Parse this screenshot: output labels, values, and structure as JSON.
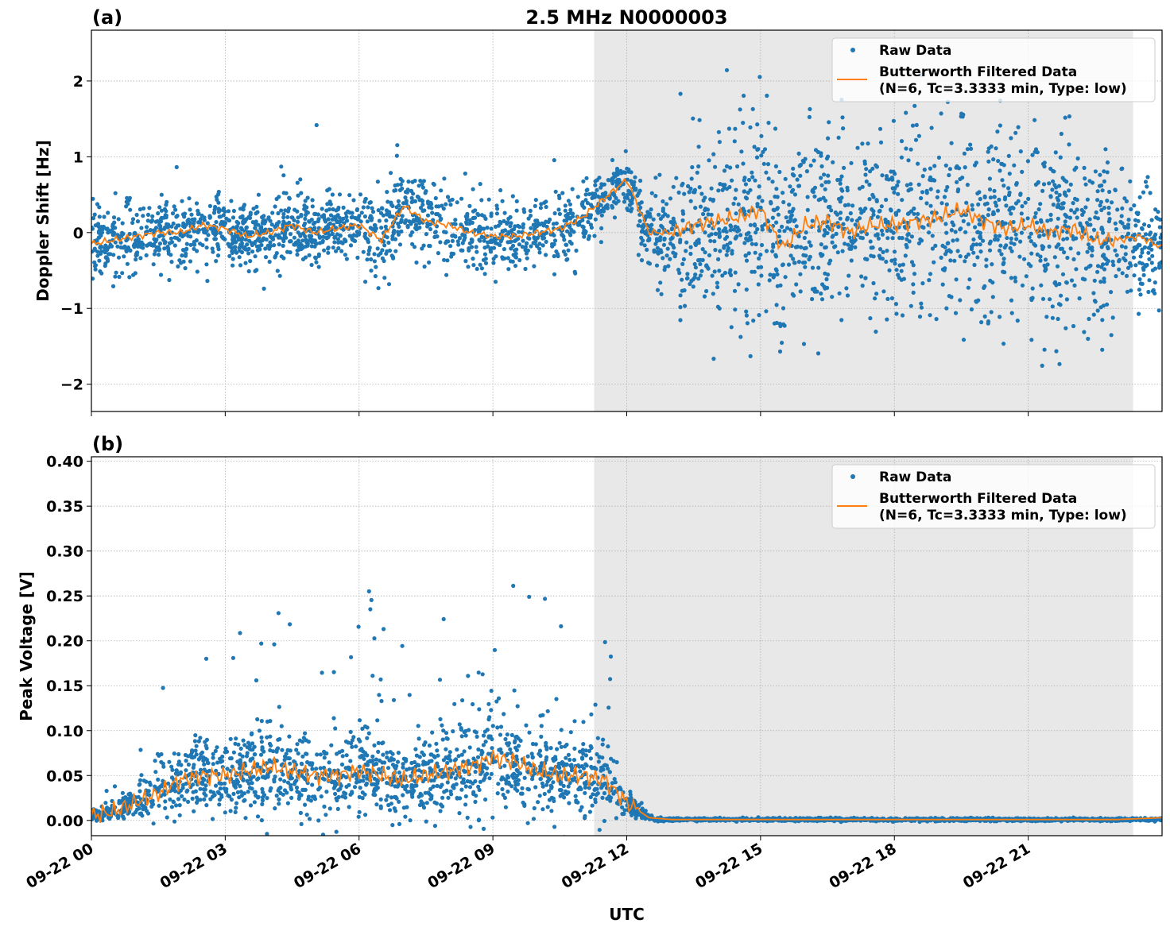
{
  "chart_data": [
    {
      "type": "scatter",
      "panel_label": "(a)",
      "title": "2.5 MHz N0000003",
      "xlabel": "",
      "ylabel": "Doppler Shift [Hz]",
      "x_unit": "hours UTC on 09-22",
      "xlim": [
        0,
        24
      ],
      "ylim": [
        -2.36,
        2.67
      ],
      "yticks": [
        -2,
        -1,
        0,
        1,
        2
      ],
      "ytick_labels": [
        "−2",
        "−1",
        "0",
        "1",
        "2"
      ],
      "xtick_labels": [
        "09-22 00",
        "09-22 03",
        "09-22 06",
        "09-22 09",
        "09-22 12",
        "09-22 15",
        "09-22 18",
        "09-22 21"
      ],
      "xticks": [
        0,
        3,
        6,
        9,
        12,
        15,
        18,
        21
      ],
      "grid": true,
      "shaded_interval": [
        11.27,
        23.35
      ],
      "shade_color": "#e8e8e8",
      "legend": {
        "placement": "top-right",
        "entries": [
          "Raw Data",
          "Butterworth Filtered Data",
          "(N=6, Tc=3.3333 min, Type: low)"
        ]
      },
      "series": [
        {
          "name": "Raw Data",
          "color": "#1f77b4",
          "marker": "dot"
        },
        {
          "name": "Butterworth Filtered Data",
          "color": "#ff7f0e",
          "t": [
            0,
            0.5,
            1,
            1.5,
            2,
            2.5,
            3,
            3.5,
            4,
            4.5,
            5,
            5.5,
            6,
            6.5,
            7,
            7.5,
            8,
            8.5,
            9,
            9.5,
            10,
            10.5,
            11,
            11.5,
            12,
            12.5,
            13,
            13.5,
            14,
            14.5,
            15,
            15.5,
            16,
            16.5,
            17,
            17.5,
            18,
            18.5,
            19,
            19.5,
            20,
            20.5,
            21,
            21.5,
            22,
            22.5,
            23,
            23.5,
            24
          ],
          "values": [
            -0.15,
            -0.1,
            -0.05,
            0,
            0,
            0.1,
            0.05,
            -0.05,
            0,
            0.1,
            0,
            0.05,
            0.1,
            -0.1,
            0.35,
            0.15,
            0.1,
            0,
            -0.05,
            -0.05,
            0,
            0.05,
            0.2,
            0.45,
            0.7,
            0,
            0,
            0.1,
            0.15,
            0.2,
            0.3,
            -0.2,
            0.1,
            0.15,
            0,
            0.1,
            0.1,
            0.15,
            0.2,
            0.3,
            0.15,
            0.05,
            0.1,
            0,
            0.05,
            -0.1,
            -0.1,
            -0.05,
            -0.2
          ]
        }
      ]
    },
    {
      "type": "scatter",
      "panel_label": "(b)",
      "xlabel": "UTC",
      "ylabel": "Peak Voltage [V]",
      "x_unit": "hours UTC on 09-22",
      "xlim": [
        0,
        24
      ],
      "ylim": [
        -0.017,
        0.405
      ],
      "yticks": [
        0,
        0.05,
        0.1,
        0.15,
        0.2,
        0.25,
        0.3,
        0.35,
        0.4
      ],
      "ytick_labels": [
        "0.00",
        "0.05",
        "0.10",
        "0.15",
        "0.20",
        "0.25",
        "0.30",
        "0.35",
        "0.40"
      ],
      "xtick_labels": [
        "09-22 00",
        "09-22 03",
        "09-22 06",
        "09-22 09",
        "09-22 12",
        "09-22 15",
        "09-22 18",
        "09-22 21"
      ],
      "xticks": [
        0,
        3,
        6,
        9,
        12,
        15,
        18,
        21
      ],
      "grid": true,
      "shaded_interval": [
        11.27,
        23.35
      ],
      "shade_color": "#e8e8e8",
      "legend": {
        "placement": "top-right",
        "entries": [
          "Raw Data",
          "Butterworth Filtered Data",
          "(N=6, Tc=3.3333 min, Type: low)"
        ]
      },
      "series": [
        {
          "name": "Raw Data",
          "color": "#1f77b4",
          "marker": "dot"
        },
        {
          "name": "Butterworth Filtered Data",
          "color": "#ff7f0e",
          "t": [
            0,
            0.5,
            1,
            1.5,
            2,
            2.5,
            3,
            3.5,
            4,
            4.5,
            5,
            5.5,
            6,
            6.5,
            7,
            7.5,
            8,
            8.5,
            9,
            9.5,
            10,
            10.5,
            11,
            11.5,
            12,
            12.5,
            13,
            13.5,
            14,
            14.5,
            15,
            15.5,
            16,
            16.5,
            17,
            17.5,
            18,
            18.5,
            19,
            19.5,
            20,
            20.5,
            21,
            21.5,
            22,
            22.5,
            23,
            23.5,
            24
          ],
          "values": [
            0.005,
            0.01,
            0.02,
            0.03,
            0.045,
            0.05,
            0.05,
            0.055,
            0.06,
            0.055,
            0.05,
            0.05,
            0.055,
            0.05,
            0.045,
            0.05,
            0.055,
            0.06,
            0.07,
            0.065,
            0.055,
            0.05,
            0.05,
            0.045,
            0.02,
            0.003,
            0.001,
            0.001,
            0.001,
            0.001,
            0.001,
            0.001,
            0.001,
            0.001,
            0.001,
            0.001,
            0.001,
            0.001,
            0.001,
            0.001,
            0.001,
            0.001,
            0.001,
            0.001,
            0.001,
            0.001,
            0.001,
            0.002,
            0.003
          ]
        }
      ]
    }
  ]
}
